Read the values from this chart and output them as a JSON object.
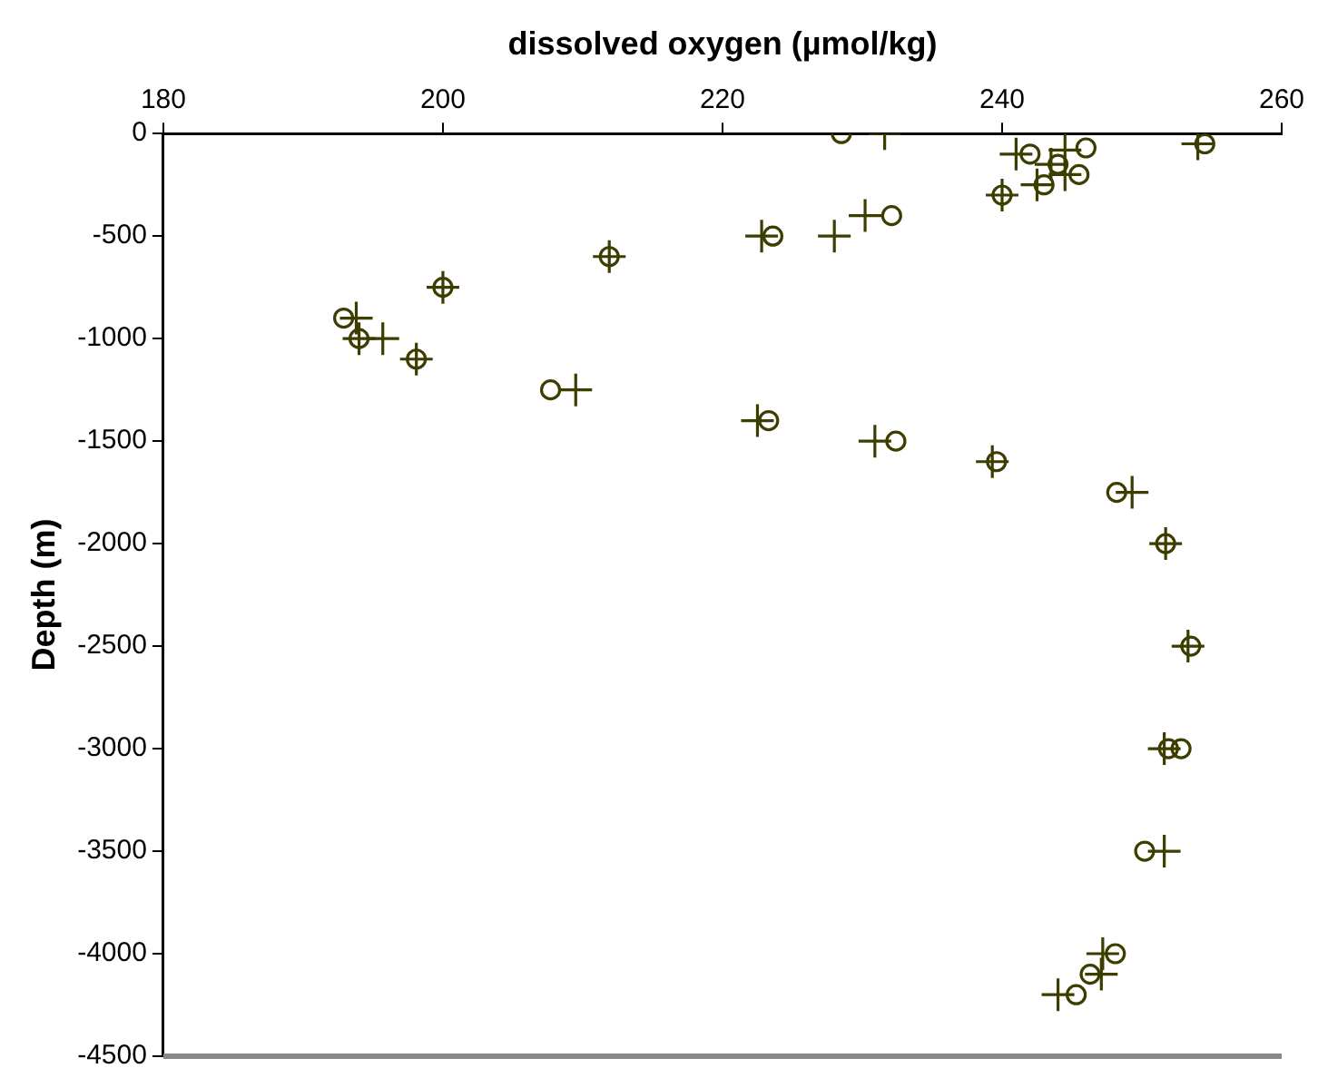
{
  "chart_data": {
    "type": "scatter",
    "xlabel": "dissolved oxygen (µmol/kg)",
    "ylabel": "Depth (m)",
    "xlim": [
      180,
      260
    ],
    "xticks": [
      180,
      200,
      220,
      240,
      260
    ],
    "ylim": [
      -4500,
      0
    ],
    "yticks": [
      -4500,
      -4000,
      -3500,
      -3000,
      -2500,
      -2000,
      -1500,
      -1000,
      -500,
      0
    ],
    "grid": false,
    "legend": false,
    "series": [
      {
        "color": "#3d3d00",
        "marker": "circle",
        "x": [
          228.5,
          254.5,
          246,
          242,
          244,
          245.5,
          243,
          240,
          232.1,
          223.6,
          211.9,
          200,
          192.9,
          194,
          198.1,
          207.7,
          223.3,
          232.4,
          239.6,
          248.2,
          251.7,
          253.5,
          251.9,
          252.8,
          250.2,
          248.1,
          246.3,
          245.3
        ],
        "values": [
          0,
          -50,
          -70,
          -100,
          -150,
          -200,
          -250,
          -300,
          -400,
          -500,
          -600,
          -750,
          -900,
          -1000,
          -1100,
          -1250,
          -1400,
          -1500,
          -1600,
          -1750,
          -2000,
          -2500,
          -3000,
          -3000,
          -3500,
          -4000,
          -4100,
          -4200
        ]
      },
      {
        "color": "#3d3d00",
        "marker": "cross",
        "x": [
          231.6,
          254,
          244.5,
          241,
          243.5,
          244.5,
          242.5,
          240,
          230.2,
          222.8,
          228,
          211.9,
          200,
          193.8,
          194,
          195.7,
          198.1,
          209.5,
          222.5,
          230.9,
          239.3,
          249.3,
          251.7,
          253.3,
          251.6,
          251.6,
          247.2,
          247.1,
          244
        ],
        "values": [
          0,
          -50,
          -80,
          -100,
          -150,
          -200,
          -250,
          -300,
          -400,
          -500,
          -500,
          -600,
          -750,
          -900,
          -1000,
          -1000,
          -1100,
          -1250,
          -1400,
          -1500,
          -1600,
          -1750,
          -2000,
          -2500,
          -3000,
          -3500,
          -4000,
          -4100,
          -4200
        ]
      }
    ]
  }
}
